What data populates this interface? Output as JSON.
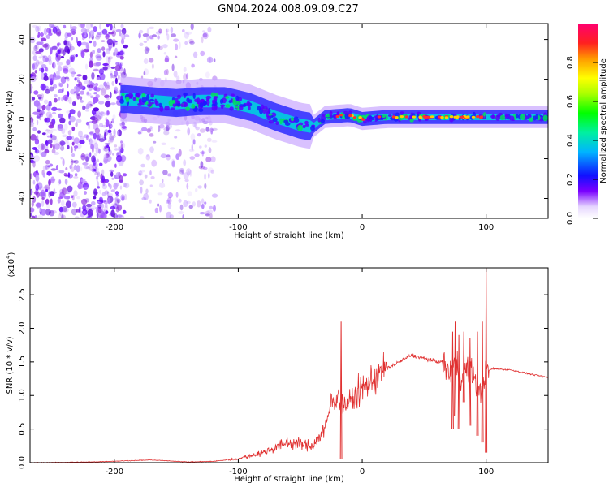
{
  "title": "GN04.2024.008.09.09.C27",
  "chart_data": [
    {
      "type": "heatmap",
      "xlabel": "Height of straight line (km)",
      "ylabel": "Frequency (Hz)",
      "xlim": [
        -268,
        150
      ],
      "ylim": [
        -50,
        48
      ],
      "xticks": [
        -200,
        -100,
        0,
        100
      ],
      "yticks": [
        -40,
        -20,
        0,
        20,
        40
      ],
      "colorbar": {
        "label": "Normalized spectral amplitude",
        "range": [
          0,
          1
        ],
        "ticks": [
          "0.0",
          "0.2",
          "0.4",
          "0.6",
          "0.8"
        ]
      },
      "ridge": {
        "x": [
          -190,
          -170,
          -150,
          -130,
          -110,
          -90,
          -70,
          -50,
          -40,
          -30,
          -10,
          0,
          20,
          50,
          80,
          100,
          150
        ],
        "freq": [
          10,
          9,
          8,
          9,
          9,
          6,
          1,
          -3,
          -4,
          1,
          2,
          0,
          1,
          1,
          1,
          1,
          1
        ]
      }
    },
    {
      "type": "line",
      "xlabel": "Height of straight line (km)",
      "ylabel": "SNR (10 * v/v)",
      "multiplier": "(x10",
      "exponent": "4",
      "exp_close": ")",
      "xlim": [
        -268,
        150
      ],
      "ylim": [
        0,
        2.9
      ],
      "xticks": [
        -200,
        -100,
        0,
        100
      ],
      "yticks": [
        "0.0",
        "0.5",
        "1.0",
        "1.5",
        "2.0",
        "2.5"
      ],
      "series": [
        {
          "name": "SNR",
          "color": "#e03030",
          "x": [
            -268,
            -220,
            -170,
            -140,
            -120,
            -100,
            -80,
            -60,
            -40,
            -30,
            -25,
            -20,
            -15,
            -10,
            0,
            20,
            30,
            40,
            50,
            60,
            65,
            70,
            75,
            80,
            85,
            90,
            95,
            100,
            105,
            120,
            140,
            150
          ],
          "y": [
            0.0,
            0.01,
            0.04,
            0.01,
            0.02,
            0.06,
            0.15,
            0.3,
            0.25,
            0.5,
            0.9,
            1.0,
            0.85,
            0.9,
            1.1,
            1.4,
            1.5,
            1.6,
            1.55,
            1.5,
            1.5,
            1.3,
            1.5,
            1.3,
            1.4,
            1.3,
            1.0,
            1.35,
            1.4,
            1.38,
            1.3,
            1.27
          ]
        }
      ],
      "spikes": [
        {
          "x": -17,
          "y": 2.1,
          "lo": 0.05
        },
        {
          "x": 73,
          "y": 1.95,
          "lo": 0.5
        },
        {
          "x": 75,
          "y": 2.1,
          "lo": 0.7
        },
        {
          "x": 78,
          "y": 1.9,
          "lo": 0.5
        },
        {
          "x": 82,
          "y": 1.95,
          "lo": 0.9
        },
        {
          "x": 87,
          "y": 1.85,
          "lo": 0.55
        },
        {
          "x": 93,
          "y": 1.95,
          "lo": 0.4
        },
        {
          "x": 97,
          "y": 2.1,
          "lo": 0.3
        },
        {
          "x": 100,
          "y": 2.9,
          "lo": 0.15
        }
      ]
    }
  ]
}
